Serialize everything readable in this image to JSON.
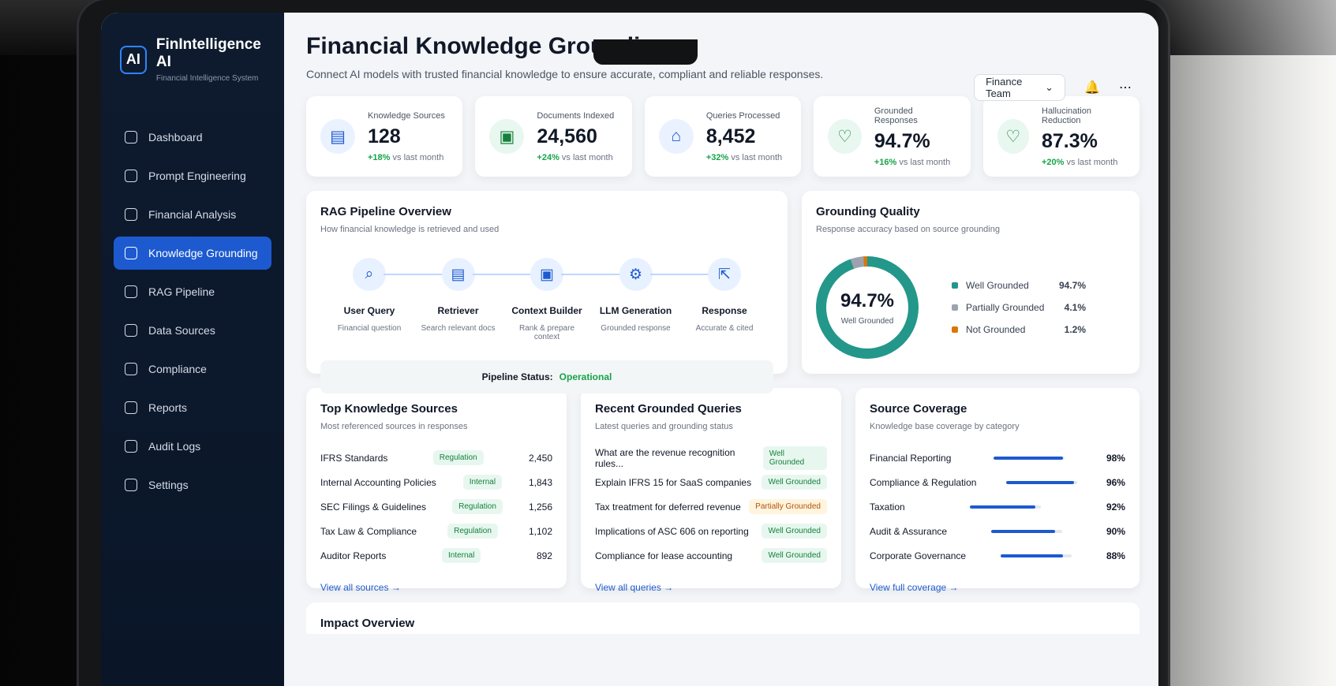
{
  "brand": {
    "logo": "AI",
    "title": "FinIntelligence AI",
    "subtitle": "Financial Intelligence System"
  },
  "nav": [
    {
      "label": "Dashboard"
    },
    {
      "label": "Prompt Engineering"
    },
    {
      "label": "Financial Analysis"
    },
    {
      "label": "Knowledge Grounding"
    },
    {
      "label": "RAG Pipeline"
    },
    {
      "label": "Data Sources"
    },
    {
      "label": "Compliance"
    },
    {
      "label": "Reports"
    },
    {
      "label": "Audit Logs"
    },
    {
      "label": "Settings"
    }
  ],
  "header": {
    "title": "Financial Knowledge Grounding",
    "subtitle": "Connect AI models with trusted financial knowledge to ensure accurate, compliant and reliable responses.",
    "team": "Finance Team"
  },
  "kpis": [
    {
      "label": "Knowledge Sources",
      "value": "128",
      "change": "+18%",
      "note": "vs last month",
      "icon": "document-icon"
    },
    {
      "label": "Documents Indexed",
      "value": "24,560",
      "change": "+24%",
      "note": "vs last month",
      "icon": "file-icon"
    },
    {
      "label": "Queries Processed",
      "value": "8,452",
      "change": "+32%",
      "note": "vs last month",
      "icon": "query-icon"
    },
    {
      "label": "Grounded Responses",
      "value": "94.7%",
      "change": "+16%",
      "note": "vs last month",
      "icon": "heart-check-icon"
    },
    {
      "label": "Hallucination Reduction",
      "value": "87.3%",
      "change": "+20%",
      "note": "vs last month",
      "icon": "heart-check-icon"
    }
  ],
  "rag": {
    "title": "RAG Pipeline Overview",
    "subtitle": "How financial knowledge is retrieved and used",
    "status_label": "Pipeline Status:",
    "status": "Operational",
    "steps": [
      {
        "name": "User Query",
        "desc": "Financial question"
      },
      {
        "name": "Retriever",
        "desc": "Search relevant docs"
      },
      {
        "name": "Context Builder",
        "desc": "Rank & prepare context"
      },
      {
        "name": "LLM Generation",
        "desc": "Grounded response"
      },
      {
        "name": "Response",
        "desc": "Accurate & cited"
      }
    ]
  },
  "quality": {
    "title": "Grounding Quality",
    "subtitle": "Response accuracy based on source grounding",
    "value": "94.7%",
    "label": "Well Grounded",
    "legend": [
      {
        "name": "Well Grounded",
        "value": "94.7%"
      },
      {
        "name": "Partially Grounded",
        "value": "4.1%"
      },
      {
        "name": "Not Grounded",
        "value": "1.2%"
      }
    ]
  },
  "sources": {
    "title": "Top Knowledge Sources",
    "subtitle": "Most referenced sources in responses",
    "link": "View all sources →",
    "items": [
      {
        "name": "IFRS Standards",
        "tag": "Regulation",
        "count": "2,450"
      },
      {
        "name": "Internal Accounting Policies",
        "tag": "Internal",
        "count": "1,843"
      },
      {
        "name": "SEC Filings & Guidelines",
        "tag": "Regulation",
        "count": "1,256"
      },
      {
        "name": "Tax Law & Compliance",
        "tag": "Regulation",
        "count": "1,102"
      },
      {
        "name": "Auditor Reports",
        "tag": "Internal",
        "count": "892"
      }
    ]
  },
  "queries": {
    "title": "Recent Grounded Queries",
    "subtitle": "Latest queries and grounding status",
    "link": "View all queries →",
    "items": [
      {
        "text": "What are the revenue recognition rules...",
        "status": "Well Grounded"
      },
      {
        "text": "Explain IFRS 15 for SaaS companies",
        "status": "Well Grounded"
      },
      {
        "text": "Tax treatment for deferred revenue",
        "status": "Partially Grounded"
      },
      {
        "text": "Implications of ASC 606 on reporting",
        "status": "Well Grounded"
      },
      {
        "text": "Compliance for lease accounting",
        "status": "Well Grounded"
      }
    ]
  },
  "coverage": {
    "title": "Source Coverage",
    "subtitle": "Knowledge base coverage by category",
    "link": "View full coverage →",
    "items": [
      {
        "name": "Financial Reporting",
        "value": "98%"
      },
      {
        "name": "Compliance & Regulation",
        "value": "96%"
      },
      {
        "name": "Taxation",
        "value": "92%"
      },
      {
        "name": "Audit & Assurance",
        "value": "90%"
      },
      {
        "name": "Corporate Governance",
        "value": "88%"
      }
    ]
  },
  "impact": {
    "title": "Impact Overview"
  }
}
